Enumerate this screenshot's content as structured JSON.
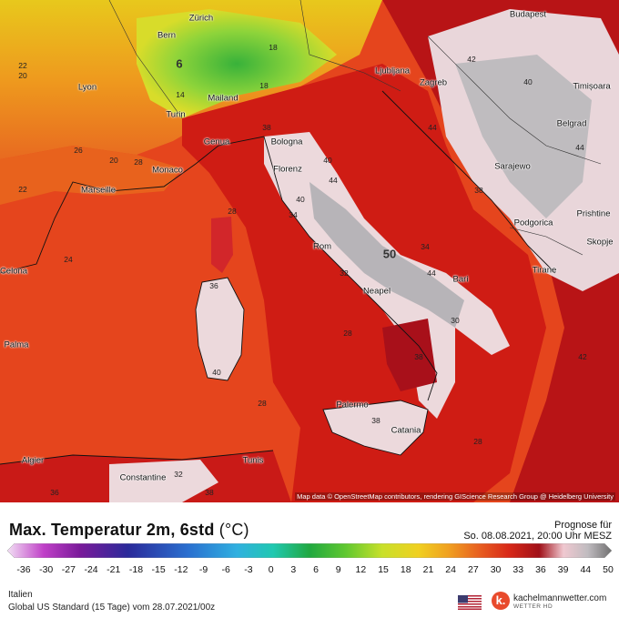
{
  "map": {
    "attribution": "Map data © OpenStreetMap contributors, rendering GIScience Research Group @ Heidelberg University",
    "cities": [
      {
        "name": "Zürich"
      },
      {
        "name": "Bern"
      },
      {
        "name": "Budapest"
      },
      {
        "name": "Lyon"
      },
      {
        "name": "Mailand"
      },
      {
        "name": "Ljubljana"
      },
      {
        "name": "Zagreb"
      },
      {
        "name": "Timișoara"
      },
      {
        "name": "Turin"
      },
      {
        "name": "Genua"
      },
      {
        "name": "Bologna"
      },
      {
        "name": "Belgrad"
      },
      {
        "name": "Florenz"
      },
      {
        "name": "Monaco"
      },
      {
        "name": "Marseille"
      },
      {
        "name": "Sarajewo"
      },
      {
        "name": "Rom"
      },
      {
        "name": "Podgorica"
      },
      {
        "name": "Prishtine"
      },
      {
        "name": "Celona"
      },
      {
        "name": "Bari"
      },
      {
        "name": "Skopje"
      },
      {
        "name": "Neapel"
      },
      {
        "name": "Tirane"
      },
      {
        "name": "Palma"
      },
      {
        "name": "Palermo"
      },
      {
        "name": "Catania"
      },
      {
        "name": "Algier"
      },
      {
        "name": "Tunis"
      },
      {
        "name": "Constantine"
      }
    ],
    "values": [
      "6",
      "22",
      "20",
      "18",
      "14",
      "18",
      "26",
      "20",
      "22",
      "28",
      "28",
      "38",
      "40",
      "44",
      "40",
      "50",
      "42",
      "44",
      "44",
      "38",
      "34",
      "44",
      "24",
      "28",
      "36",
      "38",
      "28",
      "38",
      "40",
      "28",
      "36",
      "30",
      "32",
      "34",
      "32",
      "38",
      "40",
      "42"
    ]
  },
  "legend": {
    "title_main": "Max. Temperatur 2m, 6std",
    "title_unit": "(°C)",
    "forecast_label": "Prognose für",
    "forecast_time": "So. 08.08.2021, 20:00 Uhr MESZ",
    "ticks": [
      "-36",
      "-30",
      "-27",
      "-24",
      "-21",
      "-18",
      "-15",
      "-12",
      "-9",
      "-6",
      "-3",
      "0",
      "3",
      "6",
      "9",
      "12",
      "15",
      "18",
      "21",
      "24",
      "27",
      "30",
      "33",
      "36",
      "39",
      "44",
      "50"
    ],
    "region": "Italien",
    "model": "Global US Standard (15 Tage) vom  28.07.2021/00z",
    "logo_letter": "k.",
    "brand": "kachelmannwetter.com",
    "brand_sub": "WETTER HD"
  },
  "colors": {
    "sea": "#e8421c",
    "hot": "#cc1a14",
    "hotter": "#b01216",
    "extreme": "#f2d4d8",
    "alps": "#7fcf3a",
    "warm": "#f0a81c",
    "mid": "#e86a20"
  }
}
